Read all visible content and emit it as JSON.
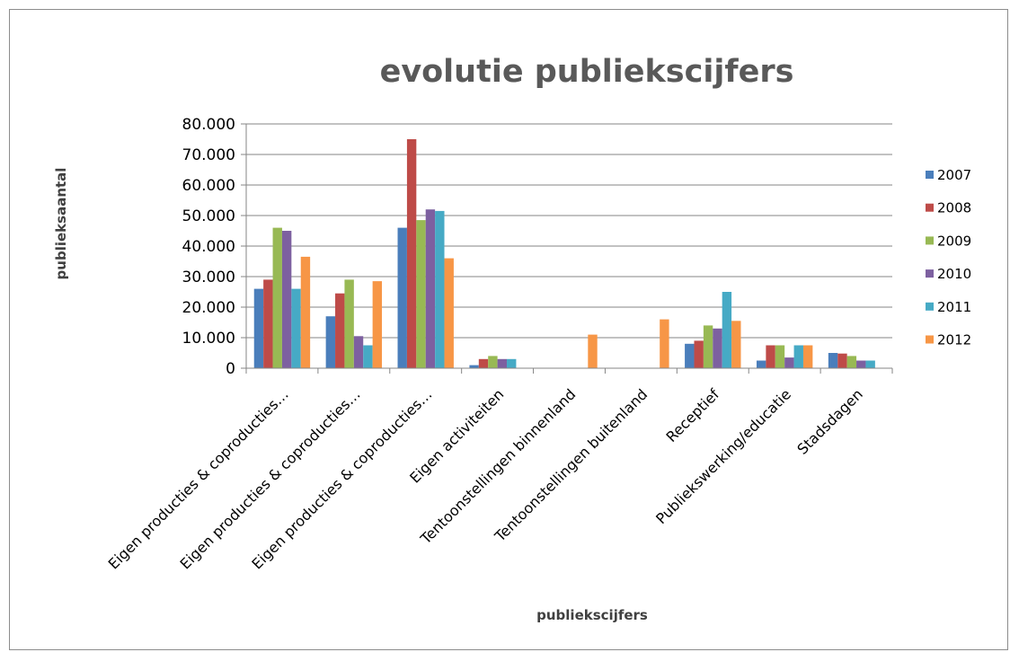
{
  "chart_data": {
    "type": "bar",
    "title": "evolutie publiekscijfers",
    "xlabel": "publiekscijfers",
    "ylabel": "publieksaantal",
    "ylim": [
      0,
      80000
    ],
    "yticks": [
      "0",
      "10.000",
      "20.000",
      "30.000",
      "40.000",
      "50.000",
      "60.000",
      "70.000",
      "80.000"
    ],
    "grid": true,
    "legend_position": "right",
    "categories": [
      "Eigen producties & coproducties…",
      "Eigen producties & coproducties…",
      "Eigen producties & coproducties…",
      "Eigen activiteiten",
      "Tentoonstellingen binnenland",
      "Tentoonstellingen buitenland",
      "Receptief",
      "Publiekswerking/educatie",
      "Stadsdagen"
    ],
    "series": [
      {
        "name": "2007",
        "color": "#4a7ebb",
        "values": [
          26000,
          17000,
          46000,
          1000,
          0,
          0,
          8000,
          2500,
          5000
        ]
      },
      {
        "name": "2008",
        "color": "#be4b48",
        "values": [
          29000,
          24500,
          75000,
          3000,
          0,
          0,
          9000,
          7500,
          4800
        ]
      },
      {
        "name": "2009",
        "color": "#98b954",
        "values": [
          46000,
          29000,
          48500,
          4000,
          0,
          0,
          14000,
          7500,
          4000
        ]
      },
      {
        "name": "2010",
        "color": "#7d60a0",
        "values": [
          45000,
          10500,
          52000,
          3000,
          0,
          0,
          13000,
          3500,
          2500
        ]
      },
      {
        "name": "2011",
        "color": "#46aac5",
        "values": [
          26000,
          7500,
          51500,
          3000,
          0,
          0,
          25000,
          7500,
          2500
        ]
      },
      {
        "name": "2012",
        "color": "#f79646",
        "values": [
          36500,
          28500,
          36000,
          0,
          11000,
          16000,
          15500,
          7500,
          0
        ]
      }
    ]
  }
}
